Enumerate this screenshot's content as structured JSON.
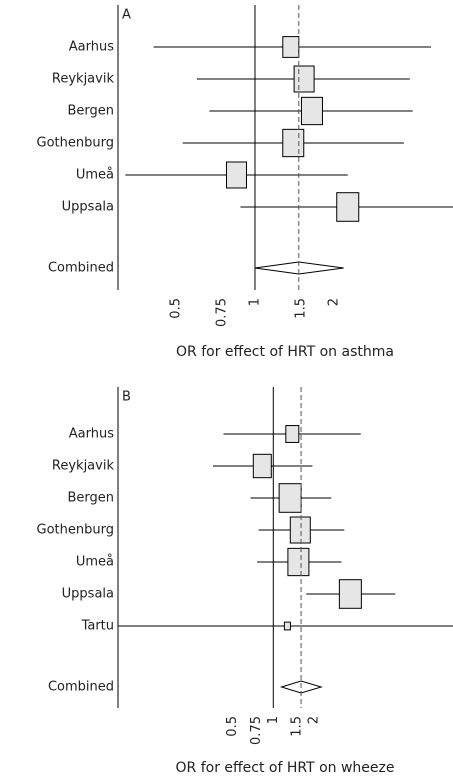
{
  "chart_data": [
    {
      "type": "forest",
      "panel": "A",
      "xscale": "log",
      "categories": [
        "Aarhus",
        "Reykjavik",
        "Bergen",
        "Gothenburg",
        "Umeå",
        "Uppsala"
      ],
      "values": [
        1.37,
        1.54,
        1.65,
        1.4,
        0.85,
        2.26
      ],
      "lower": [
        0.41,
        0.6,
        0.67,
        0.53,
        0.32,
        0.88
      ],
      "upper": [
        4.7,
        3.9,
        4.0,
        3.7,
        2.26,
        6.5
      ],
      "box_sizes": [
        16,
        20,
        21,
        21,
        20,
        22
      ],
      "combined": {
        "label": "Combined",
        "value": 1.47,
        "lower": 1.0,
        "upper": 2.18
      },
      "xlim": [
        0.3,
        5.7
      ],
      "xticks": [
        0.5,
        0.75,
        1,
        1.5,
        2
      ],
      "reference": 1,
      "xlabel": "OR for effect of HRT on asthma",
      "color": "#e6e6e6"
    },
    {
      "type": "forest",
      "panel": "B",
      "xscale": "log",
      "categories": [
        "Aarhus",
        "Reykjavik",
        "Bergen",
        "Gothenburg",
        "Umeå",
        "Uppsala",
        "Tartu"
      ],
      "values": [
        1.38,
        0.83,
        1.33,
        1.58,
        1.53,
        3.69,
        1.27
      ],
      "lower": [
        0.43,
        0.36,
        0.68,
        0.78,
        0.76,
        1.75,
        0.05
      ],
      "upper": [
        4.4,
        1.94,
        2.67,
        3.33,
        3.17,
        7.9,
        30
      ],
      "box_sizes": [
        13,
        18,
        22,
        20,
        21,
        22,
        6
      ],
      "combined": {
        "label": "Combined",
        "value": 1.6,
        "lower": 1.15,
        "upper": 2.25
      },
      "xlim": [
        0.072,
        21
      ],
      "xticks": [
        0.5,
        0.75,
        1,
        1.5,
        2
      ],
      "reference": 1,
      "xlabel": "OR for effect of HRT on wheeze",
      "color": "#e6e6e6"
    }
  ]
}
